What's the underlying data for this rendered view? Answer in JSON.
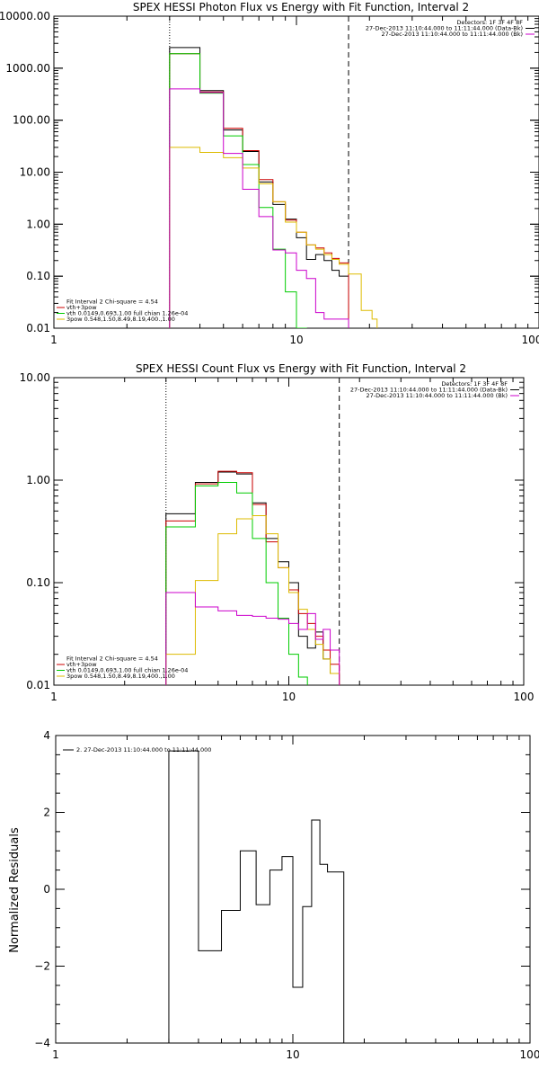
{
  "chart_data": [
    {
      "type": "line",
      "title": "SPEX HESSI Photon Flux vs Energy with Fit Function, Interval 2",
      "xscale": "log",
      "yscale": "log",
      "xlim": [
        1,
        100
      ],
      "ylim": [
        0.01,
        10000
      ],
      "xticks": [
        "1",
        "10",
        "100"
      ],
      "yticks": [
        "10000.00",
        "1000.00",
        "100.00",
        "10.00",
        "1.00",
        "0.10",
        "0.01"
      ],
      "markers": [
        {
          "x": 3.0,
          "style": "dotted"
        },
        {
          "x": 16.4,
          "style": "dashed"
        }
      ],
      "legend_top_right": [
        {
          "text": "Detectors: 1F 3F 4F 8F",
          "color": ""
        },
        {
          "text": "27-Dec-2013 11:10:44.000 to 11:11:44.000 (Data-Bk)",
          "color": "#000000"
        },
        {
          "text": "27-Dec-2013 11:10:44.000 to 11:11:44.000 (Bk)",
          "color": "#cc00cc"
        }
      ],
      "legend_bottom_left": [
        {
          "text": "Fit Interval 2   Chi-square = 4.54",
          "color": ""
        },
        {
          "text": "vth+3pow",
          "color": "#cc0000"
        },
        {
          "text": "vth 0.0149,0.693,1.00  full chian 1.26e-04",
          "color": "#00cc00"
        },
        {
          "text": "3pow 0.548,1.50,8.49,8.19,400.,1.00",
          "color": "#ddbb00"
        }
      ],
      "series": [
        {
          "color": "#000000",
          "edges": [
            3.0,
            4.0,
            5.0,
            6.0,
            7.0,
            8.0,
            9.0,
            10.0,
            11.0,
            12.0,
            13.0,
            14.0,
            15.0,
            16.4
          ],
          "values": [
            2500,
            370,
            65,
            25,
            6.5,
            2.4,
            1.25,
            0.55,
            0.21,
            0.26,
            0.2,
            0.13,
            0.1
          ]
        },
        {
          "color": "#cc0000",
          "edges": [
            3.0,
            4.0,
            5.0,
            6.0,
            7.0,
            8.0,
            9.0,
            10.0,
            11.0,
            12.0,
            13.0,
            14.0,
            15.0,
            16.4
          ],
          "values": [
            1900,
            350,
            70,
            26,
            7.2,
            2.7,
            1.2,
            0.7,
            0.4,
            0.35,
            0.28,
            0.22,
            0.18
          ]
        },
        {
          "color": "#00cc00",
          "edges": [
            3.0,
            4.0,
            5.0,
            6.0,
            7.0,
            8.0,
            9.0,
            10.0,
            11.0
          ],
          "values": [
            1900,
            330,
            50,
            14,
            2.1,
            0.33,
            0.05,
            0.01
          ]
        },
        {
          "color": "#ddbb00",
          "edges": [
            3.0,
            4.0,
            5.0,
            6.0,
            7.0,
            8.0,
            9.0,
            10.0,
            11.0,
            12.0,
            13.0,
            14.0,
            15.0,
            16.4,
            18.5,
            20.5,
            21.5
          ],
          "values": [
            30,
            24,
            19,
            12,
            6,
            2.7,
            1.1,
            0.7,
            0.4,
            0.33,
            0.26,
            0.21,
            0.17,
            0.11,
            0.022,
            0.015
          ]
        },
        {
          "color": "#cc00cc",
          "edges": [
            3.0,
            4.0,
            5.0,
            6.0,
            7.0,
            8.0,
            9.0,
            10.0,
            11.0,
            12.0,
            13.0,
            16.4
          ],
          "values": [
            400,
            340,
            23,
            4.7,
            1.4,
            0.32,
            0.28,
            0.13,
            0.09,
            0.02,
            0.015
          ]
        }
      ]
    },
    {
      "type": "line",
      "title": "SPEX HESSI Count Flux vs Energy with Fit Function, Interval 2",
      "xscale": "log",
      "yscale": "log",
      "xlim": [
        1,
        100
      ],
      "ylim": [
        0.01,
        10
      ],
      "xticks": [
        "1",
        "10",
        "100"
      ],
      "yticks": [
        "10.00",
        "1.00",
        "0.10",
        "0.01"
      ],
      "markers": [
        {
          "x": 3.0,
          "style": "dotted"
        },
        {
          "x": 16.4,
          "style": "dashed"
        }
      ],
      "legend_top_right": [
        {
          "text": "Detectors: 1F 3F 4F 8F",
          "color": ""
        },
        {
          "text": "27-Dec-2013 11:10:44.000 to 11:11:44.000 (Data-Bk)",
          "color": "#000000"
        },
        {
          "text": "27-Dec-2013 11:10:44.000 to 11:11:44.000 (Bk)",
          "color": "#cc00cc"
        }
      ],
      "legend_bottom_left": [
        {
          "text": "Fit Interval 2   Chi-square = 4.54",
          "color": ""
        },
        {
          "text": "vth+3pow",
          "color": "#cc0000"
        },
        {
          "text": "vth 0.0149,0.693,1.00  full chian 1.26e-04",
          "color": "#00cc00"
        },
        {
          "text": "3pow 0.548,1.50,8.49,8.19,400.,1.00",
          "color": "#ddbb00"
        }
      ],
      "series": [
        {
          "color": "#000000",
          "edges": [
            3.0,
            4.0,
            5.0,
            6.0,
            7.0,
            8.0,
            9.0,
            10.0,
            11.0,
            12.0,
            13.0,
            14.0,
            15.0,
            16.4
          ],
          "values": [
            0.47,
            0.95,
            1.2,
            1.15,
            0.6,
            0.27,
            0.16,
            0.1,
            0.03,
            0.023,
            0.033,
            0.018,
            0.013
          ]
        },
        {
          "color": "#cc0000",
          "edges": [
            3.0,
            4.0,
            5.0,
            6.0,
            7.0,
            8.0,
            9.0,
            10.0,
            11.0,
            12.0,
            13.0,
            14.0,
            15.0,
            16.4
          ],
          "values": [
            0.4,
            0.92,
            1.22,
            1.18,
            0.58,
            0.25,
            0.14,
            0.085,
            0.05,
            0.04,
            0.03,
            0.022,
            0.016
          ]
        },
        {
          "color": "#00cc00",
          "edges": [
            3.0,
            4.0,
            5.0,
            6.0,
            7.0,
            8.0,
            9.0,
            10.0,
            11.0,
            12.0
          ],
          "values": [
            0.35,
            0.88,
            0.95,
            0.75,
            0.27,
            0.1,
            0.045,
            0.02,
            0.012
          ]
        },
        {
          "color": "#ddbb00",
          "edges": [
            3.0,
            4.0,
            5.0,
            6.0,
            7.0,
            8.0,
            9.0,
            10.0,
            11.0,
            12.0,
            13.0,
            14.0,
            15.0,
            16.4
          ],
          "values": [
            0.02,
            0.105,
            0.3,
            0.42,
            0.45,
            0.3,
            0.14,
            0.08,
            0.055,
            0.035,
            0.025,
            0.018,
            0.013
          ]
        },
        {
          "color": "#cc00cc",
          "edges": [
            3.0,
            4.0,
            5.0,
            6.0,
            7.0,
            8.0,
            9.0,
            10.0,
            11.0,
            12.0,
            13.0,
            14.0,
            15.0,
            16.4
          ],
          "values": [
            0.08,
            0.058,
            0.053,
            0.048,
            0.047,
            0.045,
            0.044,
            0.04,
            0.035,
            0.05,
            0.028,
            0.035,
            0.022
          ]
        }
      ]
    },
    {
      "type": "line",
      "title": "",
      "ylabel": "Normalized Residuals",
      "xscale": "log",
      "yscale": "linear",
      "xlim": [
        1,
        100
      ],
      "ylim": [
        -4,
        4
      ],
      "xticks": [
        "1",
        "10",
        "100"
      ],
      "yticks": [
        "4",
        "2",
        "0",
        "−2",
        "−4"
      ],
      "legend_top_left": [
        {
          "text": "2. 27-Dec-2013 11:10:44.000 to 11:11:44.000",
          "color": "#000000"
        }
      ],
      "series": [
        {
          "color": "#000000",
          "edges": [
            3.0,
            4.0,
            5.0,
            6.0,
            7.0,
            8.0,
            9.0,
            10.0,
            11.0,
            12.0,
            13.0,
            14.0,
            15.0,
            16.4
          ],
          "values": [
            3.6,
            -1.6,
            -0.55,
            1.0,
            -0.4,
            0.5,
            0.85,
            -2.55,
            -0.45,
            1.8,
            0.65,
            0.45,
            0.45
          ]
        }
      ]
    }
  ]
}
